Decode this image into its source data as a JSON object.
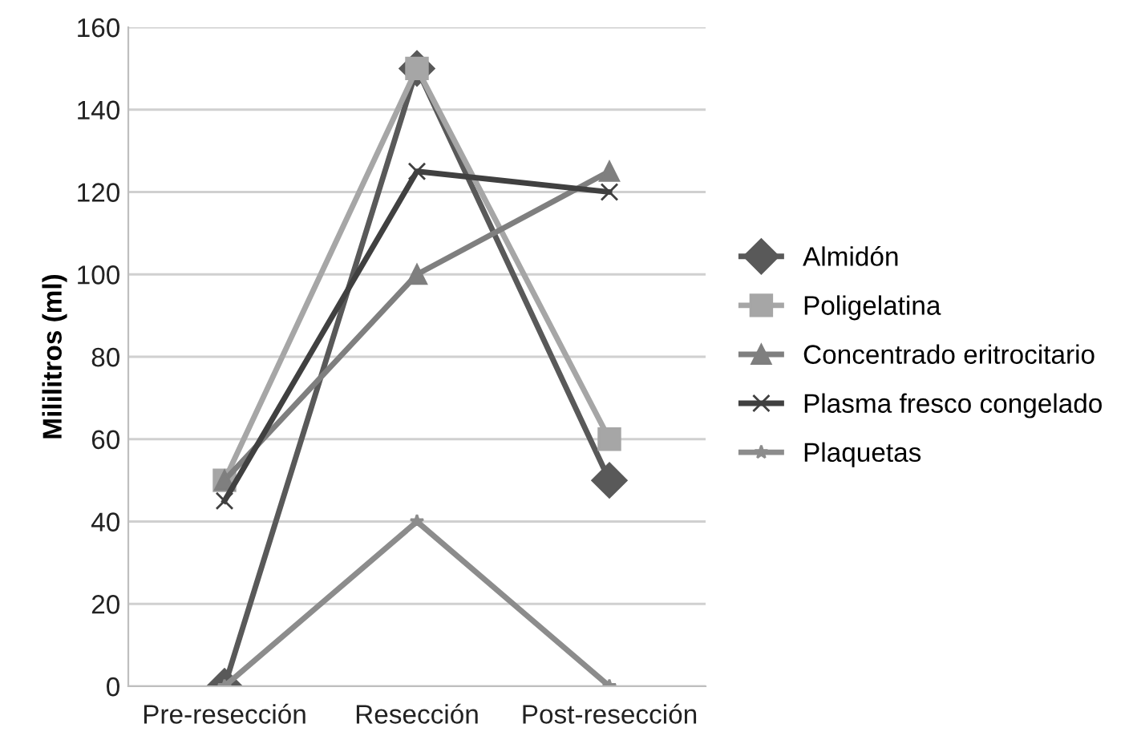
{
  "chart_data": {
    "type": "line",
    "ylabel": "Mililitros (ml)",
    "categories": [
      "Pre-resección",
      "Resección",
      "Post-resección"
    ],
    "series": [
      {
        "name": "Almidón",
        "color": "#595959",
        "values": [
          0,
          150,
          50
        ],
        "marker": "diamond"
      },
      {
        "name": "Poligelatina",
        "color": "#a6a6a6",
        "values": [
          50,
          150,
          60
        ],
        "marker": "square"
      },
      {
        "name": "Concentrado eritrocitario",
        "color": "#7f7f7f",
        "values": [
          50,
          100,
          125
        ],
        "marker": "triangle"
      },
      {
        "name": "Plasma fresco congelado",
        "color": "#404040",
        "values": [
          45,
          125,
          120
        ],
        "marker": "cross"
      },
      {
        "name": "Plaquetas",
        "color": "#8c8c8c",
        "values": [
          0,
          40,
          0
        ],
        "marker": "star"
      }
    ],
    "ylim": [
      0,
      160
    ],
    "yticks": [
      0,
      20,
      40,
      60,
      80,
      100,
      120,
      140,
      160
    ],
    "grid": "y",
    "legend": "right",
    "line_style": "solid"
  }
}
